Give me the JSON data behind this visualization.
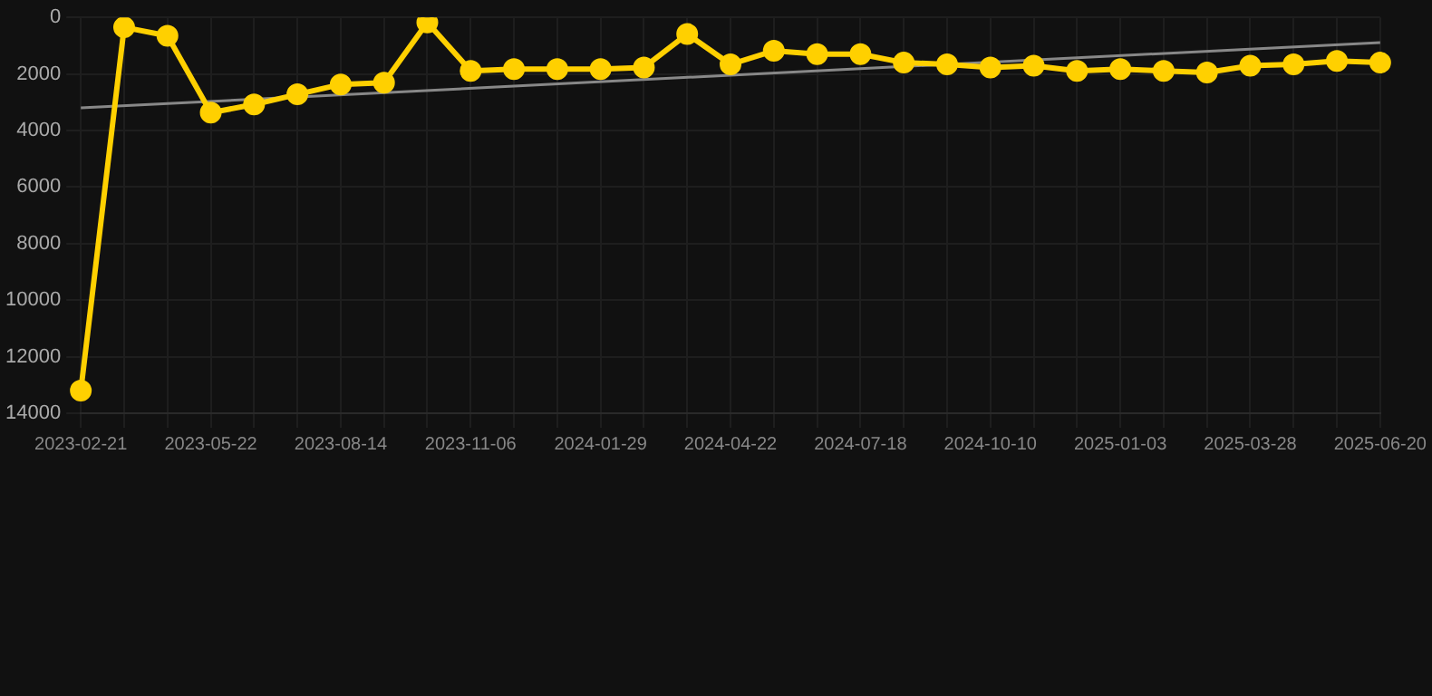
{
  "chart_data": {
    "type": "line",
    "categories": [
      "2023-02-21",
      null,
      null,
      "2023-05-22",
      null,
      null,
      "2023-08-14",
      null,
      null,
      "2023-11-06",
      null,
      null,
      "2024-01-29",
      null,
      null,
      "2024-04-22",
      null,
      null,
      "2024-07-18",
      null,
      null,
      "2024-10-10",
      null,
      null,
      "2025-01-03",
      null,
      null,
      "2025-03-28",
      null,
      null,
      "2025-06-20"
    ],
    "series": [
      {
        "color": "#ffd000",
        "values": [
          13200,
          350,
          650,
          3370,
          3080,
          2720,
          2370,
          2310,
          180,
          1890,
          1830,
          1830,
          1830,
          1770,
          590,
          1660,
          1180,
          1300,
          1300,
          1600,
          1660,
          1770,
          1710,
          1890,
          1830,
          1890,
          1950,
          1710,
          1660,
          1540,
          1600
        ],
        "marker": "circle"
      },
      {
        "type": "line",
        "color": "#888888",
        "values": [
          3200,
          null,
          null,
          null,
          null,
          null,
          null,
          null,
          null,
          null,
          null,
          null,
          null,
          null,
          null,
          null,
          null,
          null,
          null,
          null,
          null,
          null,
          null,
          null,
          null,
          null,
          null,
          null,
          null,
          null,
          890
        ],
        "marker": "none"
      }
    ],
    "ylim": [
      14000,
      0
    ],
    "yticks": [
      0,
      2000,
      4000,
      6000,
      8000,
      10000,
      12000,
      14000
    ],
    "grid": true,
    "legend": false
  }
}
